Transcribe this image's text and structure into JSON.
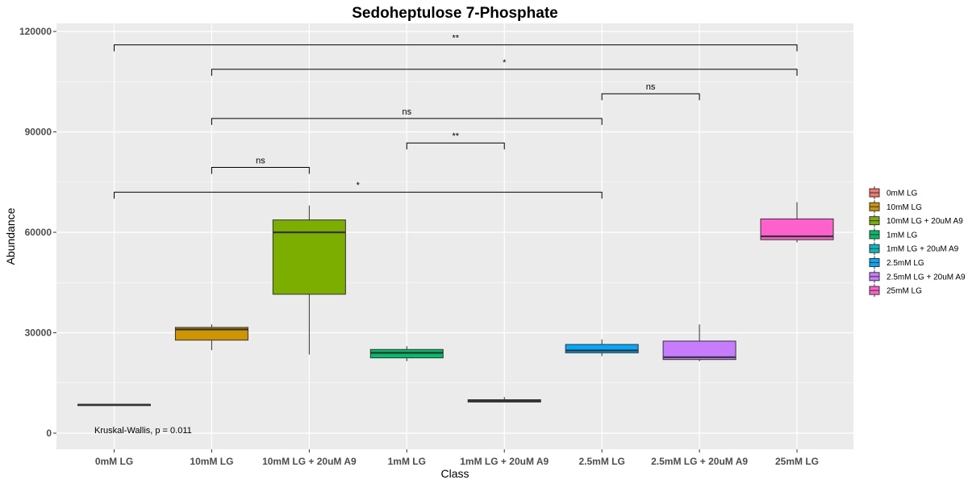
{
  "chart_data": {
    "type": "box",
    "title": "Sedoheptulose 7-Phosphate",
    "xlabel": "Class",
    "ylabel": "Abundance",
    "ylim": [
      0,
      120000
    ],
    "yticks": [
      0,
      30000,
      60000,
      90000,
      120000
    ],
    "ytick_labels": [
      "0",
      "30000",
      "60000",
      "90000",
      "120000"
    ],
    "grid": true,
    "legend_position": "right",
    "categories": [
      "0mM LG",
      "10mM LG",
      "10mM LG + 20uM A9",
      "1mM LG",
      "1mM LG + 20uM A9",
      "2.5mM LG",
      "2.5mM LG + 20uM A9",
      "25mM LG"
    ],
    "legend_order": [
      "0mM LG",
      "10mM LG",
      "10mM LG + 20uM A9",
      "1mM LG",
      "1mM LG + 20uM A9",
      "2.5mM LG",
      "2.5mM LG + 20uM A9",
      "25mM LG"
    ],
    "boxes": [
      {
        "name": "0mM LG",
        "color": "#F8766D",
        "whisker_low": 8500,
        "q1": 8500,
        "median": 8500,
        "q3": 8600,
        "whisker_high": 8800
      },
      {
        "name": "10mM LG",
        "color": "#CD9600",
        "whisker_low": 24800,
        "q1": 27800,
        "median": 31000,
        "q3": 31600,
        "whisker_high": 32500
      },
      {
        "name": "10mM LG + 20uM A9",
        "color": "#7CAE00",
        "whisker_low": 23500,
        "q1": 41500,
        "median": 60000,
        "q3": 63700,
        "whisker_high": 68000
      },
      {
        "name": "1mM LG",
        "color": "#00BE67",
        "whisker_low": 21500,
        "q1": 22500,
        "median": 24000,
        "q3": 25000,
        "whisker_high": 26000
      },
      {
        "name": "1mM LG + 20uM A9",
        "color": "#00BFC4",
        "whisker_low": 9200,
        "q1": 9300,
        "median": 9600,
        "q3": 10000,
        "whisker_high": 10800
      },
      {
        "name": "2.5mM LG",
        "color": "#00A9FF",
        "whisker_low": 23000,
        "q1": 24000,
        "median": 24700,
        "q3": 26500,
        "whisker_high": 28000
      },
      {
        "name": "2.5mM LG + 20uM A9",
        "color": "#C77CFF",
        "whisker_low": 21500,
        "q1": 22000,
        "median": 22700,
        "q3": 27500,
        "whisker_high": 32500
      },
      {
        "name": "25mM LG",
        "color": "#FF61CC",
        "whisker_low": 57000,
        "q1": 57800,
        "median": 58800,
        "q3": 64000,
        "whisker_high": 69000
      }
    ],
    "comparisons": [
      {
        "from": "0mM LG",
        "to": "25mM LG",
        "y": 116000,
        "label": "**"
      },
      {
        "from": "10mM LG",
        "to": "25mM LG",
        "y": 108700,
        "label": "*"
      },
      {
        "from": "2.5mM LG",
        "to": "2.5mM LG + 20uM A9",
        "y": 101400,
        "label": "ns"
      },
      {
        "from": "10mM LG",
        "to": "2.5mM LG",
        "y": 94000,
        "label": "ns"
      },
      {
        "from": "1mM LG",
        "to": "1mM LG + 20uM A9",
        "y": 86700,
        "label": "**"
      },
      {
        "from": "10mM LG",
        "to": "10mM LG + 20uM A9",
        "y": 79400,
        "label": "ns"
      },
      {
        "from": "0mM LG",
        "to": "2.5mM LG",
        "y": 72000,
        "label": "*"
      }
    ],
    "annotation": "Kruskal-Wallis, p = 0.011"
  }
}
